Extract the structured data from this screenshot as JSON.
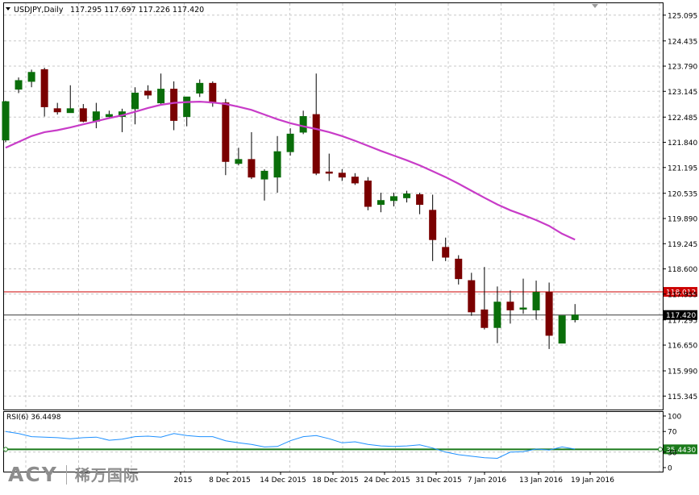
{
  "header": {
    "symbol": "USDJPY,Daily",
    "ohlc": "117.295 117.697 117.226 117.420"
  },
  "brand": {
    "logo": "ACY",
    "subtitle": "稀万国际"
  },
  "colors": {
    "bull": "#0a6e0a",
    "bear": "#7a0000",
    "ma": "#c83cc8",
    "rsi": "#1e90ff",
    "level": "#cc0000",
    "rsi_level": "#1a7a1a",
    "grid": "#c8c8c8"
  },
  "chart_data": [
    {
      "type": "candlestick",
      "name": "price",
      "title": "USDJPY,Daily",
      "ylim": [
        115.0,
        125.4
      ],
      "y_ticks": [
        "125.095",
        "124.435",
        "123.790",
        "123.145",
        "122.485",
        "121.840",
        "121.195",
        "120.535",
        "119.890",
        "119.245",
        "118.600",
        "117.955",
        "117.295",
        "116.650",
        "115.990",
        "115.345"
      ],
      "candles": [
        {
          "o": 121.9,
          "h": 122.9,
          "l": 121.85,
          "c": 122.88
        },
        {
          "o": 123.2,
          "h": 123.5,
          "l": 123.1,
          "c": 123.42
        },
        {
          "o": 123.4,
          "h": 123.7,
          "l": 123.25,
          "c": 123.63
        },
        {
          "o": 123.7,
          "h": 123.75,
          "l": 122.5,
          "c": 122.75
        },
        {
          "o": 122.7,
          "h": 122.85,
          "l": 122.55,
          "c": 122.62
        },
        {
          "o": 122.6,
          "h": 123.3,
          "l": 122.6,
          "c": 122.7
        },
        {
          "o": 122.7,
          "h": 122.82,
          "l": 122.35,
          "c": 122.38
        },
        {
          "o": 122.38,
          "h": 122.85,
          "l": 122.2,
          "c": 122.62
        },
        {
          "o": 122.5,
          "h": 122.65,
          "l": 122.45,
          "c": 122.55
        },
        {
          "o": 122.5,
          "h": 122.7,
          "l": 122.1,
          "c": 122.62
        },
        {
          "o": 122.7,
          "h": 123.25,
          "l": 122.3,
          "c": 123.1
        },
        {
          "o": 123.15,
          "h": 123.3,
          "l": 122.95,
          "c": 123.05
        },
        {
          "o": 122.85,
          "h": 123.6,
          "l": 122.8,
          "c": 123.2
        },
        {
          "o": 123.2,
          "h": 123.4,
          "l": 122.15,
          "c": 122.4
        },
        {
          "o": 122.5,
          "h": 123.0,
          "l": 122.25,
          "c": 123.0
        },
        {
          "o": 123.1,
          "h": 123.45,
          "l": 123.0,
          "c": 123.35
        },
        {
          "o": 123.35,
          "h": 123.4,
          "l": 122.75,
          "c": 122.85
        },
        {
          "o": 122.85,
          "h": 122.95,
          "l": 121.0,
          "c": 121.35
        },
        {
          "o": 121.3,
          "h": 121.7,
          "l": 121.25,
          "c": 121.4
        },
        {
          "o": 121.4,
          "h": 122.1,
          "l": 120.9,
          "c": 120.95
        },
        {
          "o": 120.9,
          "h": 121.15,
          "l": 120.35,
          "c": 121.1
        },
        {
          "o": 120.95,
          "h": 122.0,
          "l": 120.55,
          "c": 121.6
        },
        {
          "o": 121.6,
          "h": 122.2,
          "l": 121.5,
          "c": 122.05
        },
        {
          "o": 122.1,
          "h": 122.65,
          "l": 122.05,
          "c": 122.5
        },
        {
          "o": 122.55,
          "h": 123.6,
          "l": 121.0,
          "c": 121.05
        },
        {
          "o": 121.08,
          "h": 121.55,
          "l": 120.85,
          "c": 121.05
        },
        {
          "o": 121.05,
          "h": 121.15,
          "l": 120.85,
          "c": 120.95
        },
        {
          "o": 120.95,
          "h": 121.05,
          "l": 120.75,
          "c": 120.8
        },
        {
          "o": 120.85,
          "h": 120.95,
          "l": 120.1,
          "c": 120.2
        },
        {
          "o": 120.25,
          "h": 120.55,
          "l": 120.05,
          "c": 120.35
        },
        {
          "o": 120.35,
          "h": 120.55,
          "l": 120.2,
          "c": 120.45
        },
        {
          "o": 120.42,
          "h": 120.6,
          "l": 120.3,
          "c": 120.52
        },
        {
          "o": 120.5,
          "h": 120.55,
          "l": 120.0,
          "c": 120.25
        },
        {
          "o": 120.1,
          "h": 120.5,
          "l": 118.8,
          "c": 119.35
        },
        {
          "o": 119.15,
          "h": 119.4,
          "l": 118.8,
          "c": 118.9
        },
        {
          "o": 118.85,
          "h": 118.95,
          "l": 118.2,
          "c": 118.35
        },
        {
          "o": 118.3,
          "h": 118.5,
          "l": 117.4,
          "c": 117.5
        },
        {
          "o": 117.55,
          "h": 118.65,
          "l": 117.05,
          "c": 117.1
        },
        {
          "o": 117.1,
          "h": 118.15,
          "l": 116.7,
          "c": 117.75
        },
        {
          "o": 117.75,
          "h": 118.05,
          "l": 117.2,
          "c": 117.55
        },
        {
          "o": 117.6,
          "h": 118.35,
          "l": 117.45,
          "c": 117.6
        },
        {
          "o": 117.55,
          "h": 118.3,
          "l": 117.3,
          "c": 118.0
        },
        {
          "o": 118.0,
          "h": 118.25,
          "l": 116.55,
          "c": 116.9
        },
        {
          "o": 116.7,
          "h": 117.35,
          "l": 116.7,
          "c": 117.4
        },
        {
          "o": 117.3,
          "h": 117.7,
          "l": 117.23,
          "c": 117.42
        }
      ],
      "ma_period_note": "",
      "ma_values": [
        121.7,
        121.85,
        122.0,
        122.1,
        122.15,
        122.22,
        122.3,
        122.38,
        122.46,
        122.53,
        122.62,
        122.72,
        122.8,
        122.85,
        122.87,
        122.88,
        122.86,
        122.82,
        122.75,
        122.67,
        122.55,
        122.43,
        122.33,
        122.25,
        122.18,
        122.1,
        122.0,
        121.88,
        121.75,
        121.62,
        121.5,
        121.38,
        121.25,
        121.1,
        120.95,
        120.78,
        120.6,
        120.42,
        120.25,
        120.1,
        119.98,
        119.85,
        119.7,
        119.5,
        119.35
      ],
      "levels": [
        {
          "value": 118.012,
          "label": "118.012",
          "color": "#cc0000"
        },
        {
          "value": 117.42,
          "label": "117.420",
          "color": "#3a3a3a"
        }
      ]
    },
    {
      "type": "line",
      "name": "rsi",
      "title": "RSI(6) 36.4498",
      "ylim": [
        0,
        100
      ],
      "y_ticks": [
        "100",
        "70",
        "30",
        "0"
      ],
      "values": [
        70,
        66,
        60,
        59,
        58,
        56,
        58,
        59,
        53,
        55,
        60,
        61,
        59,
        66,
        62,
        60,
        60,
        52,
        48,
        45,
        40,
        41,
        52,
        60,
        62,
        56,
        48,
        50,
        45,
        42,
        41,
        42,
        44,
        38,
        30,
        25,
        22,
        19,
        18,
        30,
        31,
        36,
        34,
        40,
        36
      ],
      "level": {
        "value": 35.443,
        "label": "35.4430"
      }
    }
  ],
  "x_axis": {
    "labels": [
      "2015",
      "8 Dec 2015",
      "14 Dec 2015",
      "18 Dec 2015",
      "24 Dec 2015",
      "31 Dec 2015",
      "7 Jan 2016",
      "13 Jan 2016",
      "19 Jan 2016"
    ]
  }
}
